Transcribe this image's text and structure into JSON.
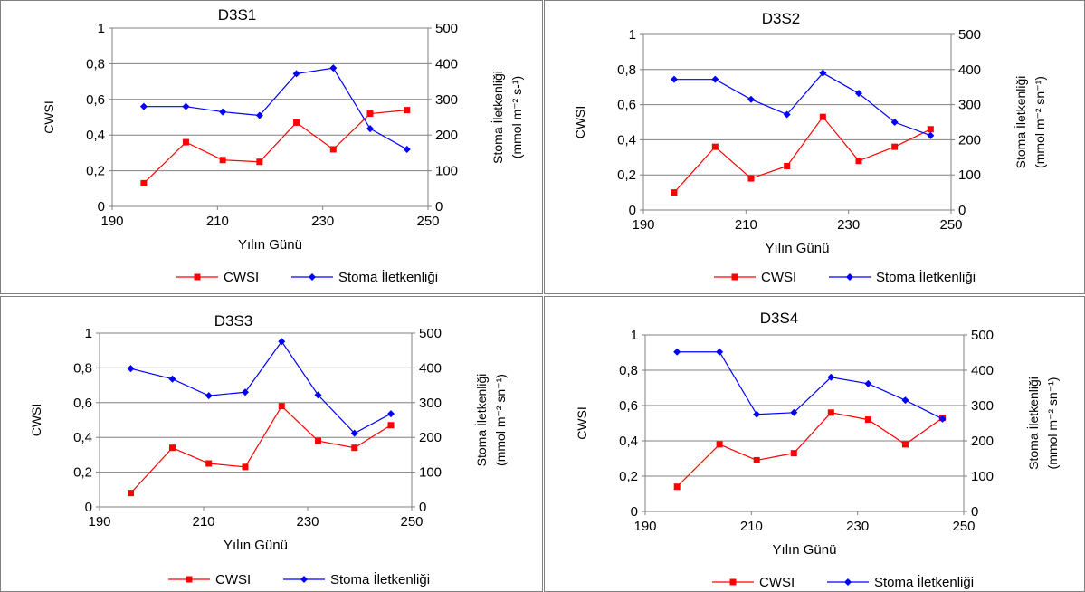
{
  "chart_data": [
    {
      "type": "line",
      "title": "D3S1",
      "xlabel": "Yılın Günü",
      "ylabel": "CWSI",
      "y2label_line1": "Stoma İletkenliği",
      "y2label_line2": "(mmol m⁻² s-¹)",
      "xlim": [
        190,
        250
      ],
      "xticks": [
        190,
        210,
        230,
        250
      ],
      "ylim": [
        0,
        1
      ],
      "yticks": [
        "0",
        "0,2",
        "0,4",
        "0,6",
        "0,8",
        "1"
      ],
      "y2lim": [
        0,
        500
      ],
      "y2ticks": [
        "0",
        "100",
        "200",
        "300",
        "400",
        "500"
      ],
      "grid": true,
      "legend": "bottom",
      "series": [
        {
          "name": "CWSI",
          "axis": "left",
          "color": "#ff0000",
          "marker": "square",
          "x": [
            196,
            204,
            211,
            218,
            225,
            232,
            239,
            246
          ],
          "values": [
            0.13,
            0.36,
            0.26,
            0.25,
            0.47,
            0.32,
            0.52,
            0.54
          ]
        },
        {
          "name": "Stoma İletkenliği",
          "axis": "right",
          "color": "#0000ff",
          "marker": "diamond",
          "x": [
            196,
            204,
            211,
            218,
            225,
            232,
            239,
            246
          ],
          "values": [
            280,
            280,
            265,
            255,
            372,
            388,
            218,
            160
          ]
        }
      ]
    },
    {
      "type": "line",
      "title": "D3S2",
      "xlabel": "Yılın Günü",
      "ylabel": "CWSI",
      "y2label_line1": "Stoma İletkenliği",
      "y2label_line2": "(mmol m⁻² sn⁻¹)",
      "xlim": [
        190,
        250
      ],
      "xticks": [
        190,
        210,
        230,
        250
      ],
      "ylim": [
        0,
        1
      ],
      "yticks": [
        "0",
        "0,2",
        "0,4",
        "0,6",
        "0,8",
        "1"
      ],
      "y2lim": [
        0,
        500
      ],
      "y2ticks": [
        "0",
        "100",
        "200",
        "300",
        "400",
        "500"
      ],
      "grid": true,
      "legend": "bottom",
      "series": [
        {
          "name": "CWSI",
          "axis": "left",
          "color": "#ff0000",
          "marker": "square",
          "x": [
            196,
            204,
            211,
            218,
            225,
            232,
            239,
            246
          ],
          "values": [
            0.1,
            0.36,
            0.18,
            0.25,
            0.53,
            0.28,
            0.36,
            0.46
          ]
        },
        {
          "name": "Stoma İletkenliği",
          "axis": "right",
          "color": "#0000ff",
          "marker": "diamond",
          "x": [
            196,
            204,
            211,
            218,
            225,
            232,
            239,
            246
          ],
          "values": [
            372,
            372,
            315,
            272,
            390,
            332,
            250,
            212
          ]
        }
      ]
    },
    {
      "type": "line",
      "title": "D3S3",
      "xlabel": "Yılın Günü",
      "ylabel": "CWSI",
      "y2label_line1": "Stoma İletkenliği",
      "y2label_line2": "(mmol m⁻² sn⁻¹)",
      "xlim": [
        190,
        250
      ],
      "xticks": [
        190,
        210,
        230,
        250
      ],
      "ylim": [
        0,
        1
      ],
      "yticks": [
        "0",
        "0,2",
        "0,4",
        "0,6",
        "0,8",
        "1"
      ],
      "y2lim": [
        0,
        500
      ],
      "y2ticks": [
        "0",
        "100",
        "200",
        "300",
        "400",
        "500"
      ],
      "grid": true,
      "legend": "bottom",
      "series": [
        {
          "name": "CWSI",
          "axis": "left",
          "color": "#ff0000",
          "marker": "square",
          "x": [
            196,
            204,
            211,
            218,
            225,
            232,
            239,
            246
          ],
          "values": [
            0.08,
            0.34,
            0.25,
            0.23,
            0.58,
            0.38,
            0.34,
            0.47
          ]
        },
        {
          "name": "Stoma İletkenliği",
          "axis": "right",
          "color": "#0000ff",
          "marker": "diamond",
          "x": [
            196,
            204,
            211,
            218,
            225,
            232,
            239,
            246
          ],
          "values": [
            398,
            368,
            320,
            330,
            476,
            322,
            212,
            268
          ]
        }
      ]
    },
    {
      "type": "line",
      "title": "D3S4",
      "xlabel": "Yılın Günü",
      "ylabel": "CWSI",
      "y2label_line1": "Stoma İletkenliği",
      "y2label_line2": "(mmol m⁻² sn⁻¹)",
      "xlim": [
        190,
        250
      ],
      "xticks": [
        190,
        210,
        230,
        250
      ],
      "ylim": [
        0,
        1
      ],
      "yticks": [
        "0",
        "0,2",
        "0,4",
        "0,6",
        "0,8",
        "1"
      ],
      "y2lim": [
        0,
        500
      ],
      "y2ticks": [
        "0",
        "100",
        "200",
        "300",
        "400",
        "500"
      ],
      "grid": true,
      "legend": "bottom",
      "series": [
        {
          "name": "CWSI",
          "axis": "left",
          "color": "#ff0000",
          "marker": "square",
          "x": [
            196,
            204,
            211,
            218,
            225,
            232,
            239,
            246
          ],
          "values": [
            0.14,
            0.38,
            0.29,
            0.33,
            0.56,
            0.52,
            0.38,
            0.53
          ]
        },
        {
          "name": "Stoma İletkenliği",
          "axis": "right",
          "color": "#0000ff",
          "marker": "diamond",
          "x": [
            196,
            204,
            211,
            218,
            225,
            232,
            239,
            246
          ],
          "values": [
            452,
            452,
            275,
            280,
            380,
            362,
            315,
            262
          ]
        }
      ]
    }
  ]
}
